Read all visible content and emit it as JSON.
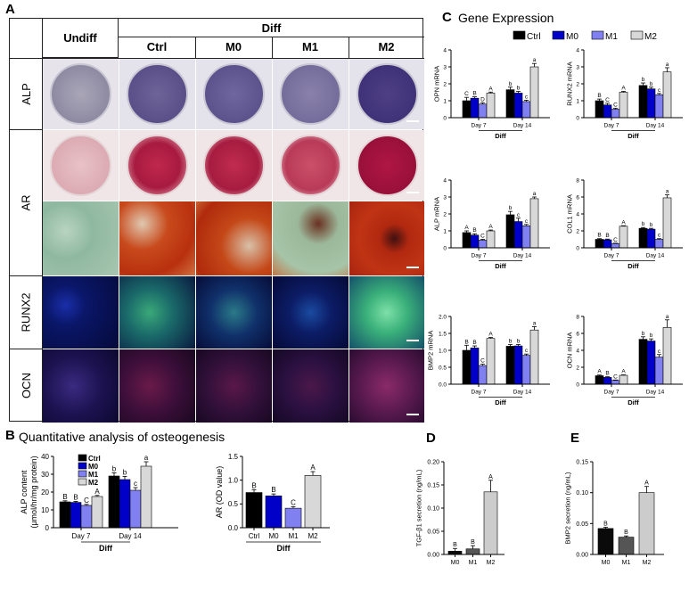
{
  "panels": {
    "a": {
      "letter": "A"
    },
    "b": {
      "letter": "B",
      "title": "Quantitative analysis of osteogenesis"
    },
    "c": {
      "letter": "C",
      "title": "Gene Expression"
    },
    "d": {
      "letter": "D"
    },
    "e": {
      "letter": "E"
    }
  },
  "grid": {
    "undiff": "Undiff",
    "diff": "Diff",
    "columns": [
      "Ctrl",
      "M0",
      "M1",
      "M2"
    ],
    "rows": [
      "ALP",
      "AR",
      "RUNX2",
      "OCN"
    ]
  },
  "colors": {
    "Ctrl": "#000000",
    "M0": "#0000c8",
    "M1": "#8080f0",
    "M2": "#d8d8d8"
  },
  "legend": [
    "Ctrl",
    "M0",
    "M1",
    "M2"
  ],
  "chart_data": [
    {
      "id": "alp_content",
      "type": "bar",
      "ylabel": "ALP content\n(μmol/hr/mg protein)",
      "ylim": [
        0,
        40
      ],
      "yticks": [
        0,
        10,
        20,
        30,
        40
      ],
      "groups": [
        "Day 7",
        "Day 14"
      ],
      "group_caption": "Diff",
      "series": [
        {
          "name": "Ctrl",
          "values": [
            14.5,
            29
          ],
          "errors": [
            0.6,
            1.8
          ],
          "labels": [
            "B",
            "b"
          ]
        },
        {
          "name": "M0",
          "values": [
            14.2,
            27
          ],
          "errors": [
            0.6,
            1.8
          ],
          "labels": [
            "B",
            "b"
          ]
        },
        {
          "name": "M1",
          "values": [
            12.5,
            21
          ],
          "errors": [
            0.6,
            1.5
          ],
          "labels": [
            "C",
            "c"
          ]
        },
        {
          "name": "M2",
          "values": [
            17.5,
            34.5
          ],
          "errors": [
            0.6,
            2.5
          ],
          "labels": [
            "A",
            "a"
          ]
        }
      ]
    },
    {
      "id": "ar_od",
      "type": "bar",
      "ylabel": "AR (OD value)",
      "ylim": [
        0,
        1.5
      ],
      "yticks": [
        "0.0",
        "0.5",
        "1.0",
        "1.5"
      ],
      "categories": [
        "Ctrl",
        "M0",
        "M1",
        "M2"
      ],
      "group_caption": "Diff",
      "values": [
        0.74,
        0.67,
        0.41,
        1.1
      ],
      "errors": [
        0.06,
        0.04,
        0.03,
        0.08
      ],
      "labels": [
        "B",
        "B",
        "C",
        "A"
      ]
    },
    {
      "id": "opn",
      "type": "bar",
      "ylabel": "OPN mRNA",
      "ylim": [
        0,
        4
      ],
      "yticks": [
        0,
        1,
        2,
        3,
        4
      ],
      "groups": [
        "Day 7",
        "Day 14"
      ],
      "group_caption": "Diff",
      "series": [
        {
          "name": "Ctrl",
          "values": [
            1.0,
            1.65
          ],
          "errors": [
            0.2,
            0.15
          ],
          "labels": [
            "C",
            "b"
          ]
        },
        {
          "name": "M0",
          "values": [
            1.15,
            1.45
          ],
          "errors": [
            0.08,
            0.1
          ],
          "labels": [
            "B",
            "b"
          ]
        },
        {
          "name": "M1",
          "values": [
            0.8,
            0.95
          ],
          "errors": [
            0.08,
            0.08
          ],
          "labels": [
            "D",
            "c"
          ]
        },
        {
          "name": "M2",
          "values": [
            1.45,
            3.0
          ],
          "errors": [
            0.06,
            0.2
          ],
          "labels": [
            "A",
            "a"
          ]
        }
      ]
    },
    {
      "id": "runx2",
      "type": "bar",
      "ylabel": "RUNX2 mRNA",
      "ylim": [
        0,
        4
      ],
      "yticks": [
        0,
        1,
        2,
        3,
        4
      ],
      "groups": [
        "Day 7",
        "Day 14"
      ],
      "group_caption": "Diff",
      "series": [
        {
          "name": "Ctrl",
          "values": [
            1.0,
            1.9
          ],
          "errors": [
            0.1,
            0.15
          ],
          "labels": [
            "B",
            "b"
          ]
        },
        {
          "name": "M0",
          "values": [
            0.75,
            1.7
          ],
          "errors": [
            0.1,
            0.1
          ],
          "labels": [
            "C",
            "b"
          ]
        },
        {
          "name": "M1",
          "values": [
            0.5,
            1.35
          ],
          "errors": [
            0.06,
            0.08
          ],
          "labels": [
            "C",
            "c"
          ]
        },
        {
          "name": "M2",
          "values": [
            1.5,
            2.7
          ],
          "errors": [
            0.05,
            0.25
          ],
          "labels": [
            "A",
            "a"
          ]
        }
      ]
    },
    {
      "id": "alp_mrna",
      "type": "bar",
      "ylabel": "ALP mRNA",
      "ylim": [
        0,
        4
      ],
      "yticks": [
        0,
        1,
        2,
        3,
        4
      ],
      "groups": [
        "Day 7",
        "Day 14"
      ],
      "group_caption": "Diff",
      "series": [
        {
          "name": "Ctrl",
          "values": [
            0.9,
            1.95
          ],
          "errors": [
            0.1,
            0.2
          ],
          "labels": [
            "A",
            "b"
          ]
        },
        {
          "name": "M0",
          "values": [
            0.75,
            1.55
          ],
          "errors": [
            0.08,
            0.2
          ],
          "labels": [
            "B",
            "c"
          ]
        },
        {
          "name": "M1",
          "values": [
            0.45,
            1.3
          ],
          "errors": [
            0.05,
            0.08
          ],
          "labels": [
            "C",
            "c"
          ]
        },
        {
          "name": "M2",
          "values": [
            1.0,
            2.9
          ],
          "errors": [
            0.05,
            0.1
          ],
          "labels": [
            "A",
            "a"
          ]
        }
      ]
    },
    {
      "id": "col1",
      "type": "bar",
      "ylabel": "COL1 mRNA",
      "ylim": [
        0,
        8
      ],
      "yticks": [
        0,
        2,
        4,
        6,
        8
      ],
      "groups": [
        "Day 7",
        "Day 14"
      ],
      "group_caption": "Diff",
      "series": [
        {
          "name": "Ctrl",
          "values": [
            1.0,
            2.3
          ],
          "errors": [
            0.08,
            0.1
          ],
          "labels": [
            "B",
            "b"
          ]
        },
        {
          "name": "M0",
          "values": [
            0.95,
            2.2
          ],
          "errors": [
            0.08,
            0.1
          ],
          "labels": [
            "B",
            "b"
          ]
        },
        {
          "name": "M1",
          "values": [
            0.5,
            1.0
          ],
          "errors": [
            0.05,
            0.08
          ],
          "labels": [
            "C",
            "c"
          ]
        },
        {
          "name": "M2",
          "values": [
            2.55,
            5.9
          ],
          "errors": [
            0.05,
            0.35
          ],
          "labels": [
            "A",
            "a"
          ]
        }
      ]
    },
    {
      "id": "bmp2_mrna",
      "type": "bar",
      "ylabel": "BMP2 mRNA",
      "ylim": [
        0,
        2.0
      ],
      "yticks": [
        "0.0",
        "0.5",
        "1.0",
        "1.5",
        "2.0"
      ],
      "groups": [
        "Day 7",
        "Day 14"
      ],
      "group_caption": "Diff",
      "series": [
        {
          "name": "Ctrl",
          "values": [
            1.0,
            1.12
          ],
          "errors": [
            0.15,
            0.05
          ],
          "labels": [
            "B",
            "b"
          ]
        },
        {
          "name": "M0",
          "values": [
            1.07,
            1.13
          ],
          "errors": [
            0.06,
            0.04
          ],
          "labels": [
            "B",
            "b"
          ]
        },
        {
          "name": "M1",
          "values": [
            0.55,
            0.85
          ],
          "errors": [
            0.04,
            0.04
          ],
          "labels": [
            "C",
            "c"
          ]
        },
        {
          "name": "M2",
          "values": [
            1.35,
            1.6
          ],
          "errors": [
            0.03,
            0.1
          ],
          "labels": [
            "A",
            "a"
          ]
        }
      ]
    },
    {
      "id": "ocn_mrna",
      "type": "bar",
      "ylabel": "OCN mRNA",
      "ylim": [
        0,
        8
      ],
      "yticks": [
        0,
        2,
        4,
        6,
        8
      ],
      "groups": [
        "Day 7",
        "Day 14"
      ],
      "group_caption": "Diff",
      "series": [
        {
          "name": "Ctrl",
          "values": [
            1.0,
            5.3
          ],
          "errors": [
            0.08,
            0.3
          ],
          "labels": [
            "A",
            "b"
          ]
        },
        {
          "name": "M0",
          "values": [
            0.8,
            5.1
          ],
          "errors": [
            0.08,
            0.25
          ],
          "labels": [
            "B",
            "b"
          ]
        },
        {
          "name": "M1",
          "values": [
            0.45,
            3.2
          ],
          "errors": [
            0.05,
            0.3
          ],
          "labels": [
            "C",
            "c"
          ]
        },
        {
          "name": "M2",
          "values": [
            1.05,
            6.7
          ],
          "errors": [
            0.05,
            0.9
          ],
          "labels": [
            "A",
            "a"
          ]
        }
      ]
    },
    {
      "id": "tgfb1",
      "type": "bar",
      "ylabel": "TGF-β1 secretion (ng/mL)",
      "ylim": [
        0,
        0.2
      ],
      "yticks": [
        "0.00",
        "0.05",
        "0.10",
        "0.15",
        "0.20"
      ],
      "categories": [
        "M0",
        "M1",
        "M2"
      ],
      "values": [
        0.007,
        0.012,
        0.135
      ],
      "errors": [
        0.006,
        0.007,
        0.025
      ],
      "labels": [
        "B",
        "B",
        "A"
      ]
    },
    {
      "id": "bmp2_secretion",
      "type": "bar",
      "ylabel": "BMP2 secretion (ng/mL)",
      "ylim": [
        0,
        0.15
      ],
      "yticks": [
        "0.00",
        "0.05",
        "0.10",
        "0.15"
      ],
      "categories": [
        "M0",
        "M1",
        "M2"
      ],
      "values": [
        0.042,
        0.028,
        0.1
      ],
      "errors": [
        0.002,
        0.002,
        0.01
      ],
      "labels": [
        "B",
        "B",
        "A"
      ]
    }
  ]
}
